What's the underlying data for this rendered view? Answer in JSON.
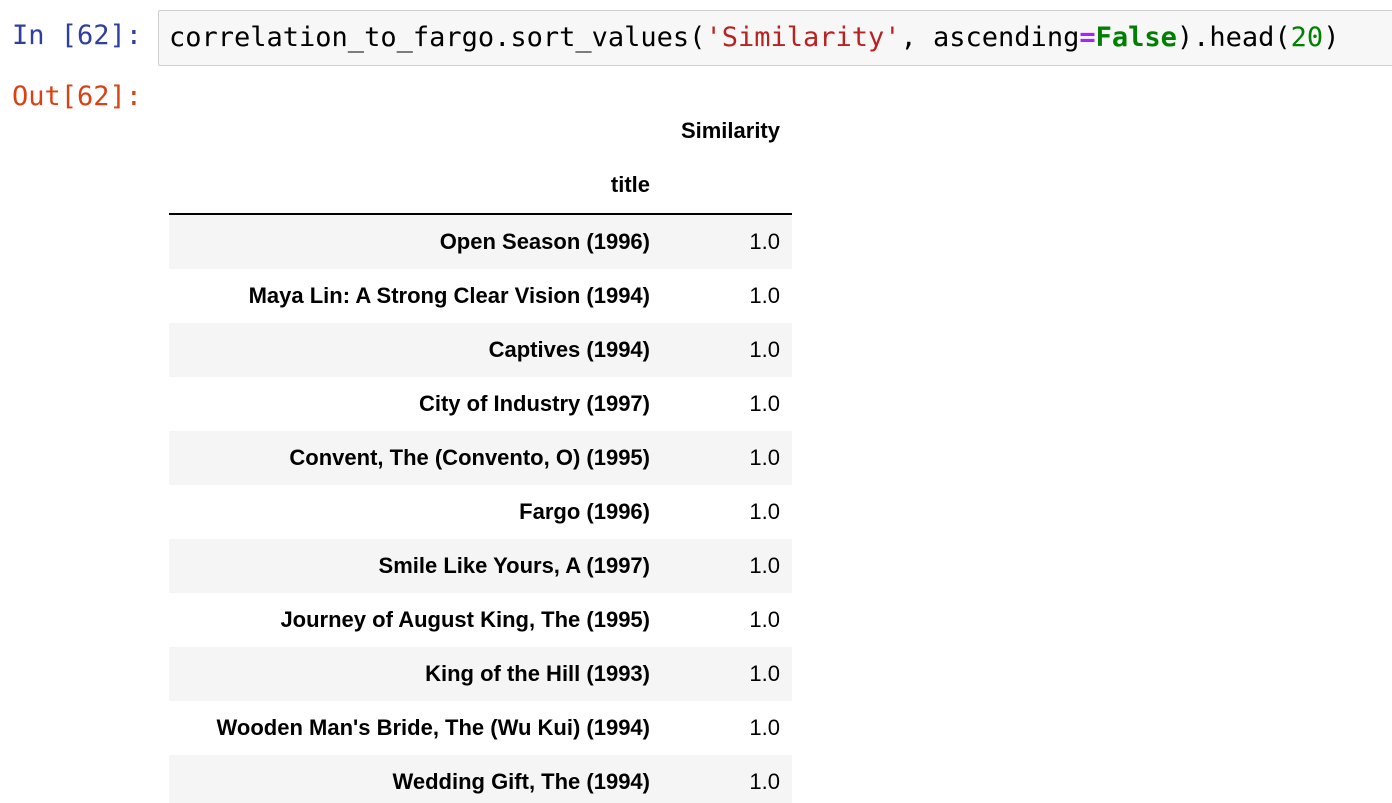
{
  "cell": {
    "in_prompt": "In [62]:",
    "out_prompt": "Out[62]:",
    "code": {
      "part1": "correlation_to_fargo.sort_values(",
      "string": "'Similarity'",
      "part2": ", ascending",
      "operator": "=",
      "keyword": "False",
      "part3": ").head(",
      "number": "20",
      "part4": ")"
    }
  },
  "dataframe": {
    "column_header": "Similarity",
    "index_name": "title",
    "rows": [
      {
        "title": "Open Season (1996)",
        "similarity": "1.0"
      },
      {
        "title": "Maya Lin: A Strong Clear Vision (1994)",
        "similarity": "1.0"
      },
      {
        "title": "Captives (1994)",
        "similarity": "1.0"
      },
      {
        "title": "City of Industry (1997)",
        "similarity": "1.0"
      },
      {
        "title": "Convent, The (Convento, O) (1995)",
        "similarity": "1.0"
      },
      {
        "title": "Fargo (1996)",
        "similarity": "1.0"
      },
      {
        "title": "Smile Like Yours, A (1997)",
        "similarity": "1.0"
      },
      {
        "title": "Journey of August King, The (1995)",
        "similarity": "1.0"
      },
      {
        "title": "King of the Hill (1993)",
        "similarity": "1.0"
      },
      {
        "title": "Wooden Man's Bride, The (Wu Kui) (1994)",
        "similarity": "1.0"
      },
      {
        "title": "Wedding Gift, The (1994)",
        "similarity": "1.0"
      }
    ]
  },
  "colors": {
    "in_prompt": "#303f9f",
    "out_prompt": "#d84315",
    "string": "#ba2121",
    "keyword": "#008000",
    "operator": "#aa22ff",
    "code_bg": "#f7f7f7",
    "row_stripe": "#f5f5f5"
  }
}
